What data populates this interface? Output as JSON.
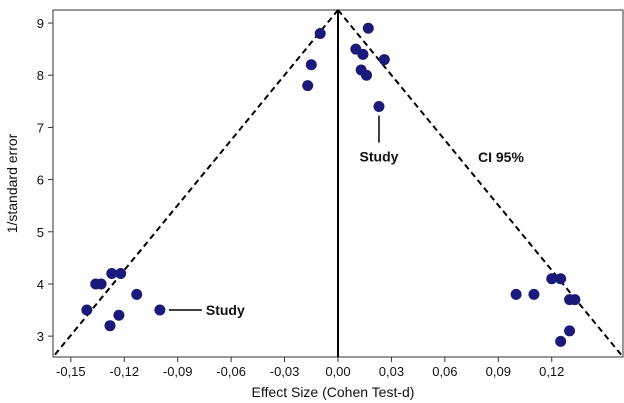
{
  "chart_data": {
    "type": "scatter",
    "title": "",
    "xlabel": "Effect Size (Cohen Test-d)",
    "ylabel": "1/standard error",
    "xlim": [
      -0.16,
      0.16
    ],
    "ylim": [
      2.6,
      9.25
    ],
    "x_ticks": [
      -0.15,
      -0.12,
      -0.09,
      -0.06,
      -0.03,
      0.0,
      0.03,
      0.06,
      0.09,
      0.12
    ],
    "x_tick_labels": [
      "-0,15",
      "-0,12",
      "-0,09",
      "-0,06",
      "-0,03",
      "0,00",
      "0,03",
      "0,06",
      "0,09",
      "0,12"
    ],
    "y_ticks": [
      3,
      4,
      5,
      6,
      7,
      8,
      9
    ],
    "y_tick_labels": [
      "3",
      "4",
      "5",
      "6",
      "7",
      "8",
      "9"
    ],
    "point_color": "#1a1a7a",
    "points": [
      {
        "x": -0.01,
        "y": 8.8
      },
      {
        "x": -0.015,
        "y": 8.2
      },
      {
        "x": -0.017,
        "y": 7.8
      },
      {
        "x": 0.01,
        "y": 8.5
      },
      {
        "x": 0.017,
        "y": 8.9
      },
      {
        "x": 0.014,
        "y": 8.4
      },
      {
        "x": 0.013,
        "y": 8.1
      },
      {
        "x": 0.016,
        "y": 8.0
      },
      {
        "x": 0.026,
        "y": 8.3
      },
      {
        "x": 0.023,
        "y": 7.4
      },
      {
        "x": -0.141,
        "y": 3.5
      },
      {
        "x": -0.136,
        "y": 4.0
      },
      {
        "x": -0.133,
        "y": 4.0
      },
      {
        "x": -0.127,
        "y": 4.2
      },
      {
        "x": -0.122,
        "y": 4.2
      },
      {
        "x": -0.113,
        "y": 3.8
      },
      {
        "x": -0.123,
        "y": 3.4
      },
      {
        "x": -0.128,
        "y": 3.2
      },
      {
        "x": -0.1,
        "y": 3.5
      },
      {
        "x": 0.1,
        "y": 3.8
      },
      {
        "x": 0.11,
        "y": 3.8
      },
      {
        "x": 0.12,
        "y": 4.1
      },
      {
        "x": 0.125,
        "y": 4.1
      },
      {
        "x": 0.13,
        "y": 3.7
      },
      {
        "x": 0.133,
        "y": 3.7
      },
      {
        "x": 0.13,
        "y": 3.1
      },
      {
        "x": 0.125,
        "y": 2.9
      }
    ],
    "center_line_x": 0.0,
    "ci_funnel": {
      "label": "CI 95%",
      "apex": [
        0.0,
        9.25
      ],
      "left_base": [
        -0.16,
        2.6
      ],
      "right_base": [
        0.16,
        2.6
      ]
    },
    "annotations": [
      {
        "text": "Study",
        "target": [
          -0.1,
          3.5
        ]
      },
      {
        "text": "Study",
        "target": [
          0.023,
          7.4
        ]
      }
    ],
    "grid": false,
    "legend": "none"
  }
}
